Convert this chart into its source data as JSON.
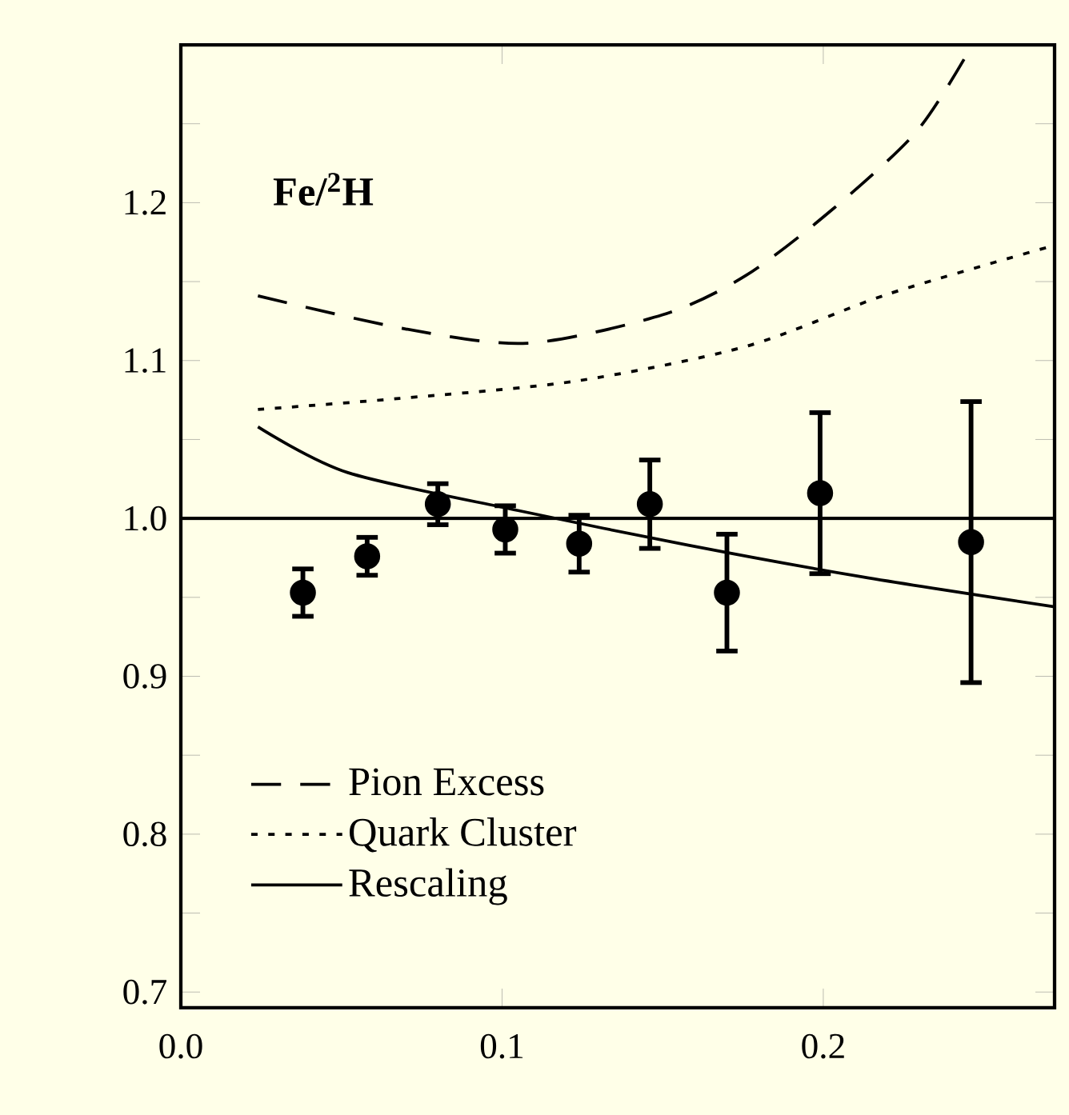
{
  "chart_data": {
    "type": "line",
    "annotations": [
      "Fe/$^{2}$H"
    ],
    "xlim": [
      0,
      0.272
    ],
    "ylim": [
      0.69,
      1.3
    ],
    "xticks": [
      {
        "value": 0,
        "label": "0.0"
      },
      0.1,
      0.2
    ],
    "yticks": [
      0.7,
      {
        "value": 0.75,
        "label": null
      },
      0.8,
      {
        "value": 0.85,
        "label": null
      },
      0.9,
      {
        "value": 0.95,
        "label": null
      },
      {
        "value": 1.0,
        "label": "1.0"
      },
      {
        "value": 1.05,
        "label": null
      },
      1.1,
      {
        "value": 1.15,
        "label": null
      },
      1.2,
      {
        "value": 1.25,
        "label": null
      }
    ],
    "ref_lines": [
      {
        "axis": "y",
        "value": 1.0,
        "color": "#000000"
      }
    ],
    "legend": "bottom left",
    "grid": false,
    "series": [
      {
        "name": "Pion Excess",
        "type": "line",
        "line_style": "dashed",
        "color": "#000000",
        "x": [
          0.024,
          0.07,
          0.108,
          0.15,
          0.176,
          0.203,
          0.229,
          0.245
        ],
        "values": [
          1.141,
          1.12,
          1.111,
          1.129,
          1.154,
          1.196,
          1.245,
          1.295
        ]
      },
      {
        "name": "Quark Cluster",
        "type": "line",
        "line_style": "dotted",
        "color": "#000000",
        "x": [
          0.024,
          0.068,
          0.123,
          0.176,
          0.22,
          0.272
        ],
        "values": [
          1.069,
          1.076,
          1.087,
          1.109,
          1.142,
          1.173
        ]
      },
      {
        "name": "Rescaling",
        "type": "line",
        "line_style": "solid",
        "color": "#000000",
        "x": [
          0.024,
          0.052,
          0.105,
          0.158,
          0.212,
          0.272
        ],
        "values": [
          1.058,
          1.029,
          1.005,
          0.983,
          0.963,
          0.944
        ]
      },
      {
        "type": "scatter",
        "marker": "circle",
        "color": "#000000",
        "x": [
          0.038,
          0.058,
          0.08,
          0.101,
          0.124,
          0.146,
          0.17,
          0.199,
          0.246
        ],
        "values": [
          0.953,
          0.976,
          1.009,
          0.993,
          0.984,
          1.009,
          0.953,
          1.016,
          0.985
        ],
        "errors": [
          0.015,
          0.012,
          0.013,
          0.015,
          0.018,
          0.028,
          0.037,
          0.051,
          0.089
        ]
      }
    ]
  }
}
